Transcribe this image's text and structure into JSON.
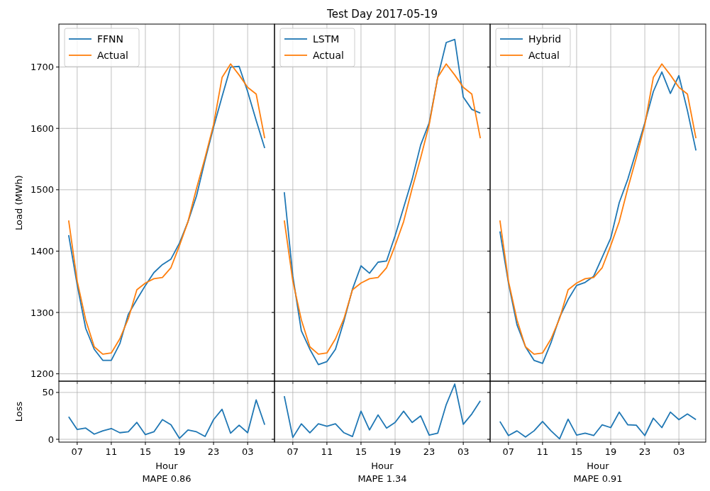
{
  "chart_data": [
    {
      "type": "line",
      "ylabel": "Load (MWh)",
      "x": [
        "2017-05-19T06:00",
        "2017-05-19T07:00",
        "2017-05-19T08:00",
        "2017-05-19T09:00",
        "2017-05-19T10:00",
        "2017-05-19T11:00",
        "2017-05-19T12:00",
        "2017-05-19T13:00",
        "2017-05-19T14:00",
        "2017-05-19T15:00",
        "2017-05-19T16:00",
        "2017-05-19T17:00",
        "2017-05-19T18:00",
        "2017-05-19T19:00",
        "2017-05-19T20:00",
        "2017-05-19T21:00",
        "2017-05-19T22:00",
        "2017-05-19T23:00",
        "2017-05-20T00:00",
        "2017-05-20T01:00",
        "2017-05-20T02:00",
        "2017-05-20T03:00",
        "2017-05-20T04:00",
        "2017-05-20T05:00"
      ],
      "xlim": [
        "2017-05-19T04:51",
        "2017-05-20T06:09"
      ],
      "ylim": [
        1188,
        1770
      ],
      "xticks": [
        {
          "value": "2017-05-19T07:00",
          "label": null
        },
        {
          "value": "2017-05-19T11:00",
          "label": null
        },
        {
          "value": "2017-05-19T15:00",
          "label": null
        },
        {
          "value": "2017-05-19T19:00",
          "label": null
        },
        {
          "value": "2017-05-19T23:00",
          "label": null
        },
        {
          "value": "2017-05-20T03:00",
          "label": null
        }
      ],
      "yticks": [
        1200,
        1300,
        1400,
        1500,
        1600,
        1700
      ],
      "grid": true,
      "legend": "top left",
      "tick_labels": "y",
      "series": [
        {
          "name": "FFNN",
          "color": "#1f77b4",
          "values": [
            1426,
            1345,
            1274,
            1240,
            1222,
            1222,
            1249,
            1297,
            1321,
            1344,
            1365,
            1378,
            1387,
            1413,
            1448,
            1490,
            1548,
            1602,
            1652,
            1700,
            1701,
            1660,
            1613,
            1568
          ]
        },
        {
          "name": "Actual",
          "color": "#ff7f0e",
          "values": [
            1450,
            1351,
            1288,
            1244,
            1232,
            1234,
            1257,
            1290,
            1337,
            1348,
            1355,
            1357,
            1373,
            1409,
            1448,
            1502,
            1552,
            1606,
            1683,
            1705,
            1687,
            1667,
            1656,
            1584
          ]
        }
      ]
    },
    {
      "type": "line",
      "title": "Test Day 2017-05-19",
      "x": [
        "2017-05-19T06:00",
        "2017-05-19T07:00",
        "2017-05-19T08:00",
        "2017-05-19T09:00",
        "2017-05-19T10:00",
        "2017-05-19T11:00",
        "2017-05-19T12:00",
        "2017-05-19T13:00",
        "2017-05-19T14:00",
        "2017-05-19T15:00",
        "2017-05-19T16:00",
        "2017-05-19T17:00",
        "2017-05-19T18:00",
        "2017-05-19T19:00",
        "2017-05-19T20:00",
        "2017-05-19T21:00",
        "2017-05-19T22:00",
        "2017-05-19T23:00",
        "2017-05-20T00:00",
        "2017-05-20T01:00",
        "2017-05-20T02:00",
        "2017-05-20T03:00",
        "2017-05-20T04:00",
        "2017-05-20T05:00"
      ],
      "xlim": [
        "2017-05-19T04:51",
        "2017-05-20T06:09"
      ],
      "ylim": [
        1188,
        1770
      ],
      "xticks": [
        {
          "value": "2017-05-19T07:00",
          "label": null
        },
        {
          "value": "2017-05-19T11:00",
          "label": null
        },
        {
          "value": "2017-05-19T15:00",
          "label": null
        },
        {
          "value": "2017-05-19T19:00",
          "label": null
        },
        {
          "value": "2017-05-19T23:00",
          "label": null
        },
        {
          "value": "2017-05-20T03:00",
          "label": null
        }
      ],
      "yticks": [
        {
          "value": 1200,
          "label": null
        },
        {
          "value": 1300,
          "label": null
        },
        {
          "value": 1400,
          "label": null
        },
        {
          "value": 1500,
          "label": null
        },
        {
          "value": 1600,
          "label": null
        },
        {
          "value": 1700,
          "label": null
        }
      ],
      "grid": true,
      "legend": "top left",
      "tick_labels": false,
      "series": [
        {
          "name": "LSTM",
          "color": "#1f77b4",
          "values": [
            1496,
            1359,
            1270,
            1240,
            1215,
            1220,
            1240,
            1286,
            1338,
            1376,
            1364,
            1382,
            1384,
            1425,
            1471,
            1517,
            1573,
            1609,
            1683,
            1740,
            1745,
            1651,
            1631,
            1625
          ]
        },
        {
          "name": "Actual",
          "color": "#ff7f0e",
          "values": [
            1450,
            1351,
            1288,
            1244,
            1232,
            1234,
            1257,
            1290,
            1337,
            1348,
            1355,
            1357,
            1373,
            1409,
            1448,
            1502,
            1552,
            1606,
            1683,
            1705,
            1687,
            1667,
            1656,
            1584
          ]
        }
      ]
    },
    {
      "type": "line",
      "x": [
        "2017-05-19T06:00",
        "2017-05-19T07:00",
        "2017-05-19T08:00",
        "2017-05-19T09:00",
        "2017-05-19T10:00",
        "2017-05-19T11:00",
        "2017-05-19T12:00",
        "2017-05-19T13:00",
        "2017-05-19T14:00",
        "2017-05-19T15:00",
        "2017-05-19T16:00",
        "2017-05-19T17:00",
        "2017-05-19T18:00",
        "2017-05-19T19:00",
        "2017-05-19T20:00",
        "2017-05-19T21:00",
        "2017-05-19T22:00",
        "2017-05-19T23:00",
        "2017-05-20T00:00",
        "2017-05-20T01:00",
        "2017-05-20T02:00",
        "2017-05-20T03:00",
        "2017-05-20T04:00",
        "2017-05-20T05:00"
      ],
      "xlim": [
        "2017-05-19T04:51",
        "2017-05-20T06:09"
      ],
      "ylim": [
        1188,
        1770
      ],
      "xticks": [
        {
          "value": "2017-05-19T07:00",
          "label": null
        },
        {
          "value": "2017-05-19T11:00",
          "label": null
        },
        {
          "value": "2017-05-19T15:00",
          "label": null
        },
        {
          "value": "2017-05-19T19:00",
          "label": null
        },
        {
          "value": "2017-05-19T23:00",
          "label": null
        },
        {
          "value": "2017-05-20T03:00",
          "label": null
        }
      ],
      "yticks": [
        {
          "value": 1200,
          "label": null
        },
        {
          "value": 1300,
          "label": null
        },
        {
          "value": 1400,
          "label": null
        },
        {
          "value": 1500,
          "label": null
        },
        {
          "value": 1600,
          "label": null
        },
        {
          "value": 1700,
          "label": null
        }
      ],
      "grid": true,
      "legend": "top left",
      "tick_labels": false,
      "series": [
        {
          "name": "Hybrid",
          "color": "#1f77b4",
          "values": [
            1432,
            1348,
            1280,
            1244,
            1222,
            1217,
            1251,
            1292,
            1321,
            1344,
            1349,
            1359,
            1390,
            1421,
            1479,
            1517,
            1563,
            1609,
            1660,
            1692,
            1657,
            1686,
            1629,
            1564
          ]
        },
        {
          "name": "Actual",
          "color": "#ff7f0e",
          "values": [
            1450,
            1351,
            1288,
            1244,
            1232,
            1234,
            1257,
            1290,
            1337,
            1348,
            1355,
            1357,
            1373,
            1409,
            1448,
            1502,
            1552,
            1606,
            1683,
            1705,
            1687,
            1667,
            1656,
            1584
          ]
        }
      ]
    },
    {
      "type": "line",
      "ylabel": "Loss",
      "xlabel": "Hour",
      "annotations": [
        "MAPE 0.86"
      ],
      "x": [
        "2017-05-19T06:00",
        "2017-05-19T07:00",
        "2017-05-19T08:00",
        "2017-05-19T09:00",
        "2017-05-19T10:00",
        "2017-05-19T11:00",
        "2017-05-19T12:00",
        "2017-05-19T13:00",
        "2017-05-19T14:00",
        "2017-05-19T15:00",
        "2017-05-19T16:00",
        "2017-05-19T17:00",
        "2017-05-19T18:00",
        "2017-05-19T19:00",
        "2017-05-19T20:00",
        "2017-05-19T21:00",
        "2017-05-19T22:00",
        "2017-05-19T23:00",
        "2017-05-20T00:00",
        "2017-05-20T01:00",
        "2017-05-20T02:00",
        "2017-05-20T03:00",
        "2017-05-20T04:00",
        "2017-05-20T05:00"
      ],
      "xlim": [
        "2017-05-19T04:51",
        "2017-05-20T06:09"
      ],
      "ylim": [
        -3,
        62
      ],
      "xticks": [
        {
          "value": "2017-05-19T07:00",
          "label": "07"
        },
        {
          "value": "2017-05-19T11:00",
          "label": "11"
        },
        {
          "value": "2017-05-19T15:00",
          "label": "15"
        },
        {
          "value": "2017-05-19T19:00",
          "label": "19"
        },
        {
          "value": "2017-05-19T23:00",
          "label": "23"
        },
        {
          "value": "2017-05-20T03:00",
          "label": "03"
        }
      ],
      "yticks": [
        0,
        50
      ],
      "grid": true,
      "series": [
        {
          "color": "#1f77b4",
          "values": [
            24,
            10.5,
            12,
            5.5,
            9,
            11.5,
            7,
            8,
            18,
            5,
            8,
            21,
            15.5,
            1,
            10,
            8,
            3,
            21,
            32,
            6.5,
            15,
            7,
            42,
            15.5
          ]
        }
      ]
    },
    {
      "type": "line",
      "xlabel": "Hour",
      "annotations": [
        "MAPE 1.34"
      ],
      "x": [
        "2017-05-19T06:00",
        "2017-05-19T07:00",
        "2017-05-19T08:00",
        "2017-05-19T09:00",
        "2017-05-19T10:00",
        "2017-05-19T11:00",
        "2017-05-19T12:00",
        "2017-05-19T13:00",
        "2017-05-19T14:00",
        "2017-05-19T15:00",
        "2017-05-19T16:00",
        "2017-05-19T17:00",
        "2017-05-19T18:00",
        "2017-05-19T19:00",
        "2017-05-19T20:00",
        "2017-05-19T21:00",
        "2017-05-19T22:00",
        "2017-05-19T23:00",
        "2017-05-20T00:00",
        "2017-05-20T01:00",
        "2017-05-20T02:00",
        "2017-05-20T03:00",
        "2017-05-20T04:00",
        "2017-05-20T05:00"
      ],
      "xlim": [
        "2017-05-19T04:51",
        "2017-05-20T06:09"
      ],
      "ylim": [
        -3,
        62
      ],
      "xticks": [
        {
          "value": "2017-05-19T07:00",
          "label": "07"
        },
        {
          "value": "2017-05-19T11:00",
          "label": "11"
        },
        {
          "value": "2017-05-19T15:00",
          "label": "15"
        },
        {
          "value": "2017-05-19T19:00",
          "label": "19"
        },
        {
          "value": "2017-05-19T23:00",
          "label": "23"
        },
        {
          "value": "2017-05-20T03:00",
          "label": "03"
        }
      ],
      "yticks": [
        {
          "value": 0,
          "label": null
        },
        {
          "value": 50,
          "label": null
        }
      ],
      "grid": true,
      "tick_labels": "x",
      "series": [
        {
          "color": "#1f77b4",
          "values": [
            46,
            2,
            16.5,
            7,
            16.5,
            14,
            16.5,
            7,
            3,
            30,
            10,
            26,
            12,
            18,
            30,
            18,
            25,
            4.5,
            6.5,
            37,
            59,
            16,
            27,
            41
          ]
        }
      ]
    },
    {
      "type": "line",
      "xlabel": "Hour",
      "annotations": [
        "MAPE 0.91"
      ],
      "x": [
        "2017-05-19T06:00",
        "2017-05-19T07:00",
        "2017-05-19T08:00",
        "2017-05-19T09:00",
        "2017-05-19T10:00",
        "2017-05-19T11:00",
        "2017-05-19T12:00",
        "2017-05-19T13:00",
        "2017-05-19T14:00",
        "2017-05-19T15:00",
        "2017-05-19T16:00",
        "2017-05-19T17:00",
        "2017-05-19T18:00",
        "2017-05-19T19:00",
        "2017-05-19T20:00",
        "2017-05-19T21:00",
        "2017-05-19T22:00",
        "2017-05-19T23:00",
        "2017-05-20T00:00",
        "2017-05-20T01:00",
        "2017-05-20T02:00",
        "2017-05-20T03:00",
        "2017-05-20T04:00",
        "2017-05-20T05:00"
      ],
      "xlim": [
        "2017-05-19T04:51",
        "2017-05-20T06:09"
      ],
      "ylim": [
        -3,
        62
      ],
      "xticks": [
        {
          "value": "2017-05-19T07:00",
          "label": "07"
        },
        {
          "value": "2017-05-19T11:00",
          "label": "11"
        },
        {
          "value": "2017-05-19T15:00",
          "label": "15"
        },
        {
          "value": "2017-05-19T19:00",
          "label": "19"
        },
        {
          "value": "2017-05-19T23:00",
          "label": "23"
        },
        {
          "value": "2017-05-20T03:00",
          "label": "03"
        }
      ],
      "yticks": [
        {
          "value": 0,
          "label": null
        },
        {
          "value": 50,
          "label": null
        }
      ],
      "grid": true,
      "tick_labels": "x",
      "series": [
        {
          "color": "#1f77b4",
          "values": [
            19,
            4,
            9,
            2.5,
            9,
            19,
            9,
            0.5,
            21.5,
            4.5,
            6.5,
            4,
            15.5,
            12.5,
            29,
            15.5,
            15,
            4,
            22.5,
            12.5,
            29,
            21,
            27,
            21
          ]
        }
      ]
    }
  ]
}
